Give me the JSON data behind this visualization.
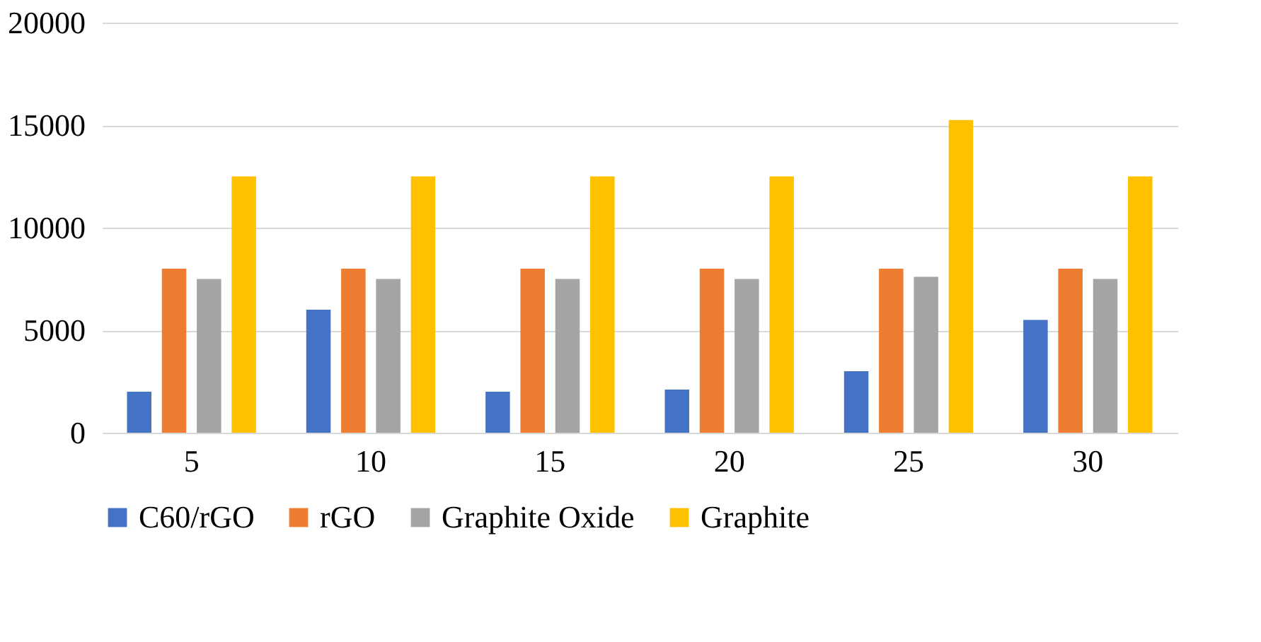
{
  "chart_data": {
    "type": "bar",
    "categories": [
      "5",
      "10",
      "15",
      "20",
      "25",
      "30"
    ],
    "series": [
      {
        "name": "C60/rGO",
        "color": "#4472c4",
        "values": [
          2000,
          6000,
          2000,
          2100,
          3000,
          5500
        ]
      },
      {
        "name": "rGO",
        "color": "#ed7d31",
        "values": [
          8000,
          8000,
          8000,
          8000,
          8000,
          8000
        ]
      },
      {
        "name": "Graphite Oxide",
        "color": "#a5a5a5",
        "values": [
          7500,
          7500,
          7500,
          7500,
          7600,
          7500
        ]
      },
      {
        "name": "Graphite",
        "color": "#ffc000",
        "values": [
          12500,
          12500,
          12500,
          12500,
          15250,
          12500
        ]
      }
    ],
    "ylim": [
      0,
      20000
    ],
    "yticks": [
      0,
      5000,
      10000,
      15000,
      20000
    ],
    "grid": "y",
    "legend": "bottom"
  }
}
